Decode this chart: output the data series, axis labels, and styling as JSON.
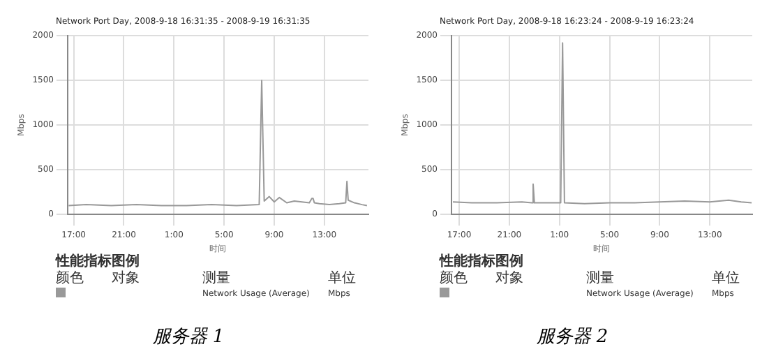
{
  "chart_data": [
    {
      "type": "line",
      "title": "Network Port Day, 2008-9-18 16:31:35 - 2008-9-19 16:31:35",
      "xlabel": "时间",
      "ylabel": "Mbps",
      "x": [
        "2008-09-18T16:36",
        "2008-09-18T18:00",
        "2008-09-18T20:00",
        "2008-09-18T22:00",
        "2008-09-19T00:00",
        "2008-09-19T02:00",
        "2008-09-19T04:00",
        "2008-09-19T06:00",
        "2008-09-19T07:48",
        "2008-09-19T08:00",
        "2008-09-19T08:12",
        "2008-09-19T08:36",
        "2008-09-19T09:00",
        "2008-09-19T09:24",
        "2008-09-19T10:00",
        "2008-09-19T10:36",
        "2008-09-19T11:12",
        "2008-09-19T11:48",
        "2008-09-19T12:00",
        "2008-09-19T12:06",
        "2008-09-19T12:12",
        "2008-09-19T12:36",
        "2008-09-19T13:24",
        "2008-09-19T14:12",
        "2008-09-19T14:42",
        "2008-09-19T14:48",
        "2008-09-19T14:54",
        "2008-09-19T15:24",
        "2008-09-19T16:00",
        "2008-09-19T16:24"
      ],
      "series": [
        {
          "color": "#999999",
          "values": [
            100,
            110,
            100,
            110,
            100,
            100,
            110,
            100,
            110,
            1500,
            150,
            200,
            140,
            190,
            130,
            150,
            140,
            130,
            180,
            180,
            130,
            120,
            110,
            120,
            130,
            370,
            160,
            130,
            110,
            100
          ]
        }
      ],
      "xlim": [
        "2008-09-18T16:31",
        "2008-09-19T16:31"
      ],
      "xticks": [
        {
          "value": "2008-09-18T17:00",
          "label": "17:00"
        },
        {
          "value": "2008-09-18T21:00",
          "label": "21:00"
        },
        {
          "value": "2008-09-19T01:00",
          "label": "1:00"
        },
        {
          "value": "2008-09-19T05:00",
          "label": "5:00"
        },
        {
          "value": "2008-09-19T09:00",
          "label": "9:00"
        },
        {
          "value": "2008-09-19T13:00",
          "label": "13:00"
        }
      ],
      "ylim": [
        0,
        2000
      ],
      "yticks": [
        0,
        500,
        1000,
        1500,
        2000
      ],
      "grid": true,
      "legend": false,
      "marker": "none",
      "annotations": [
        "性能指标图例",
        "颜色",
        "对象",
        "测量",
        "单位",
        "Network Usage (Average)",
        "Mbps",
        "服务器 1"
      ]
    },
    {
      "type": "line",
      "title": "Network Port Day, 2008-9-18 16:23:24 - 2008-9-19 16:23:24",
      "xlabel": "时间",
      "ylabel": "Mbps",
      "x": [
        "2008-09-18T16:30",
        "2008-09-18T18:00",
        "2008-09-18T20:00",
        "2008-09-18T22:00",
        "2008-09-18T22:48",
        "2008-09-18T22:54",
        "2008-09-18T23:00",
        "2008-09-19T00:00",
        "2008-09-19T01:06",
        "2008-09-19T01:15",
        "2008-09-19T01:24",
        "2008-09-19T03:00",
        "2008-09-19T05:00",
        "2008-09-19T07:00",
        "2008-09-19T09:00",
        "2008-09-19T11:00",
        "2008-09-19T13:00",
        "2008-09-19T14:30",
        "2008-09-19T15:30",
        "2008-09-19T16:20"
      ],
      "series": [
        {
          "color": "#999999",
          "values": [
            140,
            130,
            130,
            140,
            130,
            340,
            130,
            130,
            130,
            1920,
            130,
            120,
            130,
            130,
            140,
            150,
            140,
            160,
            140,
            130
          ]
        }
      ],
      "xlim": [
        "2008-09-18T16:23",
        "2008-09-19T16:23"
      ],
      "xticks": [
        {
          "value": "2008-09-18T17:00",
          "label": "17:00"
        },
        {
          "value": "2008-09-18T21:00",
          "label": "21:00"
        },
        {
          "value": "2008-09-19T01:00",
          "label": "1:00"
        },
        {
          "value": "2008-09-19T05:00",
          "label": "5:00"
        },
        {
          "value": "2008-09-19T09:00",
          "label": "9:00"
        },
        {
          "value": "2008-09-19T13:00",
          "label": "13:00"
        }
      ],
      "ylim": [
        0,
        2000
      ],
      "yticks": [
        0,
        500,
        1000,
        1500,
        2000
      ],
      "grid": true,
      "legend": false,
      "marker": "none",
      "annotations": [
        "性能指标图例",
        "颜色",
        "对象",
        "测量",
        "单位",
        "Network Usage (Average)",
        "Mbps",
        "服务器 2"
      ]
    }
  ]
}
